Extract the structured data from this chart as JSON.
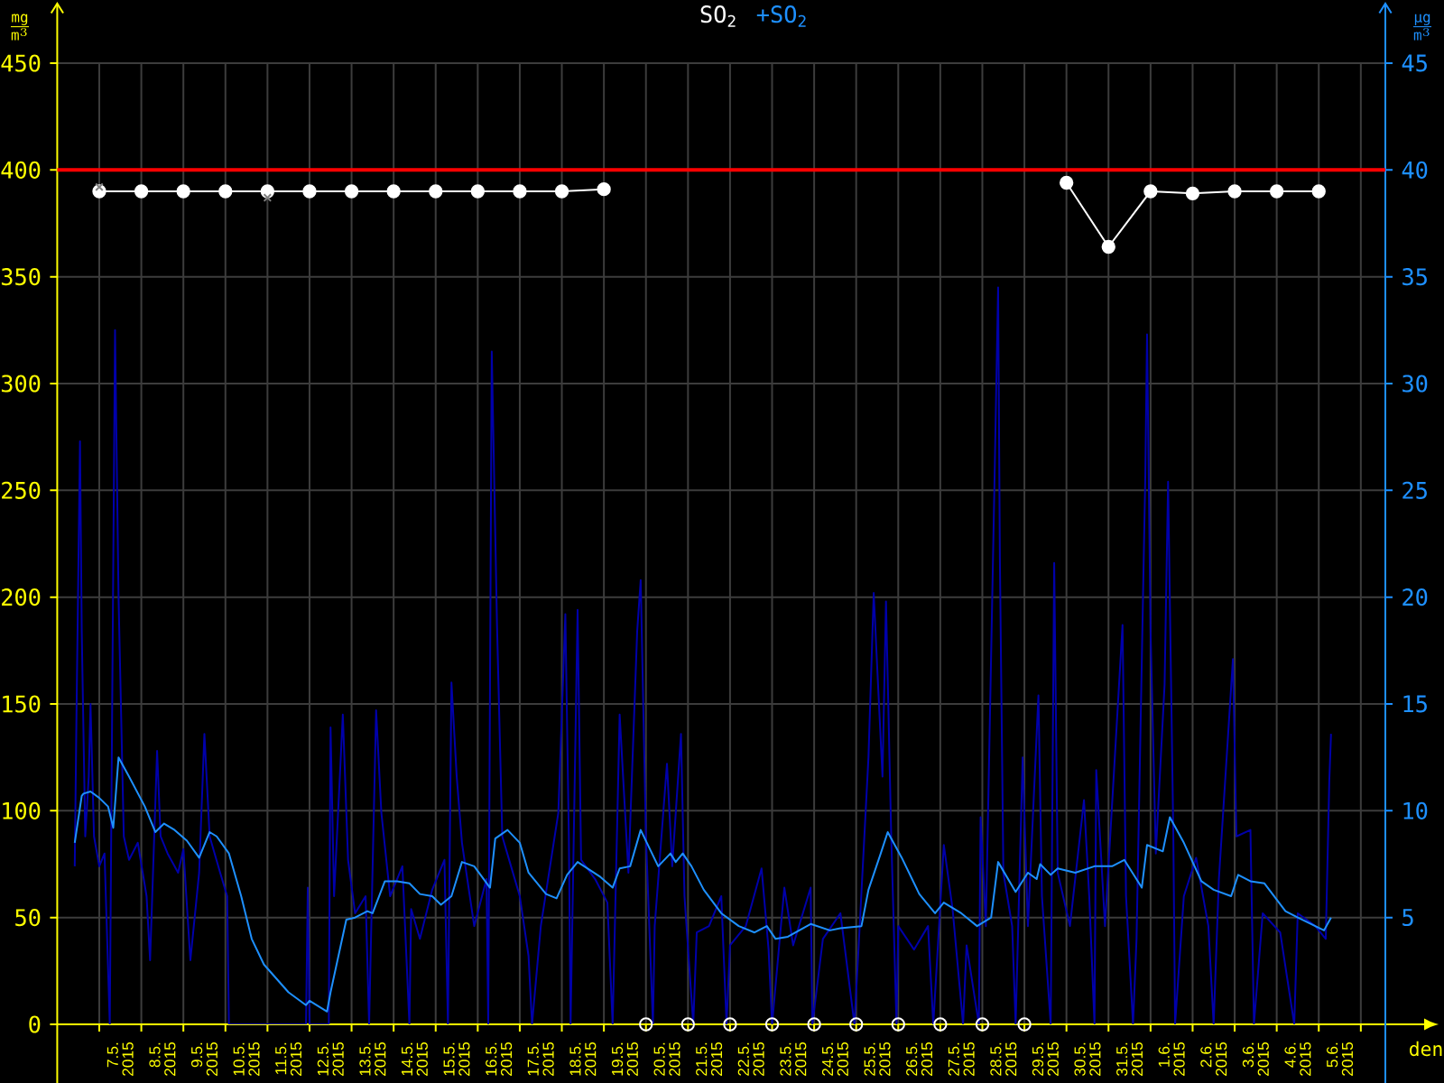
{
  "chart_data": {
    "type": "line",
    "xlabel": "den",
    "ylabel": "\\frac{\\mathrm{mg}}{\\mathrm{m}^{3}}",
    "y2label": "\\frac{\\mathrm{µg}}{\\mathrm{m}^{3}}",
    "legend": "top",
    "grid": true,
    "xlim": [
      "2015-05-06T00:00",
      "2015-06-06T14:00"
    ],
    "xticks": [
      {
        "value": "2015-05-07",
        "label": null
      },
      {
        "value": "2015-05-07T12:00",
        "label": "7.5. 2015"
      },
      {
        "value": "2015-05-08",
        "label": null
      },
      {
        "value": "2015-05-08T12:00",
        "label": "8.5. 2015"
      },
      {
        "value": "2015-05-09",
        "label": null
      },
      {
        "value": "2015-05-09T12:00",
        "label": "9.5. 2015"
      },
      {
        "value": "2015-05-10",
        "label": null
      },
      {
        "value": "2015-05-10T12:00",
        "label": "10.5. 2015"
      },
      {
        "value": "2015-05-11",
        "label": null
      },
      {
        "value": "2015-05-11T12:00",
        "label": "11.5. 2015"
      },
      {
        "value": "2015-05-12",
        "label": null
      },
      {
        "value": "2015-05-12T12:00",
        "label": "12.5. 2015"
      },
      {
        "value": "2015-05-13",
        "label": null
      },
      {
        "value": "2015-05-13T12:00",
        "label": "13.5. 2015"
      },
      {
        "value": "2015-05-14",
        "label": null
      },
      {
        "value": "2015-05-14T12:00",
        "label": "14.5. 2015"
      },
      {
        "value": "2015-05-15",
        "label": null
      },
      {
        "value": "2015-05-15T12:00",
        "label": "15.5. 2015"
      },
      {
        "value": "2015-05-16",
        "label": null
      },
      {
        "value": "2015-05-16T12:00",
        "label": "16.5. 2015"
      },
      {
        "value": "2015-05-17",
        "label": null
      },
      {
        "value": "2015-05-17T12:00",
        "label": "17.5. 2015"
      },
      {
        "value": "2015-05-18",
        "label": null
      },
      {
        "value": "2015-05-18T12:00",
        "label": "18.5. 2015"
      },
      {
        "value": "2015-05-19",
        "label": null
      },
      {
        "value": "2015-05-19T12:00",
        "label": "19.5. 2015"
      },
      {
        "value": "2015-05-20",
        "label": null
      },
      {
        "value": "2015-05-20T12:00",
        "label": "20.5. 2015"
      },
      {
        "value": "2015-05-21",
        "label": null
      },
      {
        "value": "2015-05-21T12:00",
        "label": "21.5. 2015"
      },
      {
        "value": "2015-05-22",
        "label": null
      },
      {
        "value": "2015-05-22T12:00",
        "label": "22.5. 2015"
      },
      {
        "value": "2015-05-23",
        "label": null
      },
      {
        "value": "2015-05-23T12:00",
        "label": "23.5. 2015"
      },
      {
        "value": "2015-05-24",
        "label": null
      },
      {
        "value": "2015-05-24T12:00",
        "label": "24.5. 2015"
      },
      {
        "value": "2015-05-25",
        "label": null
      },
      {
        "value": "2015-05-25T12:00",
        "label": "25.5. 2015"
      },
      {
        "value": "2015-05-26",
        "label": null
      },
      {
        "value": "2015-05-26T12:00",
        "label": "26.5. 2015"
      },
      {
        "value": "2015-05-27",
        "label": null
      },
      {
        "value": "2015-05-27T12:00",
        "label": "27.5. 2015"
      },
      {
        "value": "2015-05-28",
        "label": null
      },
      {
        "value": "2015-05-28T12:00",
        "label": "28.5. 2015"
      },
      {
        "value": "2015-05-29",
        "label": null
      },
      {
        "value": "2015-05-29T12:00",
        "label": "29.5. 2015"
      },
      {
        "value": "2015-05-30",
        "label": null
      },
      {
        "value": "2015-05-30T12:00",
        "label": "30.5. 2015"
      },
      {
        "value": "2015-05-31",
        "label": null
      },
      {
        "value": "2015-05-31T12:00",
        "label": "31.5. 2015"
      },
      {
        "value": "2015-06-01",
        "label": null
      },
      {
        "value": "2015-06-01T12:00",
        "label": "1.6. 2015"
      },
      {
        "value": "2015-06-02",
        "label": null
      },
      {
        "value": "2015-06-02T12:00",
        "label": "2.6. 2015"
      },
      {
        "value": "2015-06-03",
        "label": null
      },
      {
        "value": "2015-06-03T12:00",
        "label": "3.6. 2015"
      },
      {
        "value": "2015-06-04",
        "label": null
      },
      {
        "value": "2015-06-04T12:00",
        "label": "4.6. 2015"
      },
      {
        "value": "2015-06-05",
        "label": null
      },
      {
        "value": "2015-06-05T12:00",
        "label": "5.6. 2015"
      },
      {
        "value": "2015-06-06",
        "label": null
      }
    ],
    "ylim": [
      0,
      450
    ],
    "yticks": [
      0,
      50,
      100,
      150,
      200,
      250,
      300,
      350,
      400,
      450
    ],
    "y2lim": [
      0,
      45
    ],
    "y2ticks": [
      5,
      10,
      15,
      20,
      25,
      30,
      35,
      40,
      45
    ],
    "ref_lines": [
      {
        "axis": "y",
        "value": 400,
        "color": "#ff0000"
      }
    ],
    "series": [
      {
        "name": "SO$_{2}$",
        "color": "#ffffff",
        "marker": "circle",
        "x": [
          "2015-05-07",
          "2015-05-08",
          "2015-05-09",
          "2015-05-10",
          "2015-05-11",
          "2015-05-12",
          "2015-05-13",
          "2015-05-14",
          "2015-05-15",
          "2015-05-16",
          "2015-05-17",
          "2015-05-18",
          "2015-05-19",
          "2015-05-20",
          "2015-05-21",
          "2015-05-22",
          "2015-05-23",
          "2015-05-24",
          "2015-05-25",
          "2015-05-26",
          "2015-05-27",
          "2015-05-28",
          "2015-05-29",
          "2015-05-30",
          "2015-05-31",
          "2015-06-01",
          "2015-06-02",
          "2015-06-03",
          "2015-06-04",
          "2015-06-05"
        ],
        "values": [
          390,
          390,
          390,
          390,
          390,
          390,
          390,
          390,
          390,
          390,
          390,
          390,
          391,
          null,
          null,
          null,
          null,
          null,
          null,
          null,
          null,
          null,
          null,
          394,
          364,
          390,
          389,
          390,
          390,
          390
        ]
      },
      {
        "color": "#0000aa",
        "axis": "y2",
        "x": [
          "2015-05-06T10:00",
          "2015-05-06T11:00",
          "2015-05-06T13:00",
          "2015-05-06T14:00",
          "2015-05-06T16:00",
          "2015-05-06T18:00",
          "2015-05-06T19:00",
          "2015-05-06T21:00",
          "2015-05-07T00:00",
          "2015-05-07T03:00",
          "2015-05-07T06:00",
          "2015-05-07T09:00",
          "2015-05-07T11:00",
          "2015-05-07T14:00",
          "2015-05-07T17:00",
          "2015-05-07T22:00",
          "2015-05-08T03:00",
          "2015-05-08T05:00",
          "2015-05-08T09:00",
          "2015-05-08T11:00",
          "2015-05-08T15:00",
          "2015-05-08T21:00",
          "2015-05-09T00:00",
          "2015-05-09T04:00",
          "2015-05-09T09:00",
          "2015-05-09T12:00",
          "2015-05-09T15:00",
          "2015-05-09T21:00",
          "2015-05-10T01:00",
          "2015-05-10T02:00",
          "2015-05-11T22:00",
          "2015-05-11T23:00",
          "2015-05-12T00:00",
          "2015-05-12T11:00",
          "2015-05-12T12:00",
          "2015-05-12T14:00",
          "2015-05-12T19:00",
          "2015-05-12T22:00",
          "2015-05-13T02:00",
          "2015-05-13T08:00",
          "2015-05-13T10:00",
          "2015-05-13T14:00",
          "2015-05-13T17:00",
          "2015-05-13T22:00",
          "2015-05-14T05:00",
          "2015-05-14T09:00",
          "2015-05-14T10:00",
          "2015-05-14T15:00",
          "2015-05-14T22:00",
          "2015-05-15T05:00",
          "2015-05-15T07:00",
          "2015-05-15T09:00",
          "2015-05-15T12:00",
          "2015-05-15T15:00",
          "2015-05-15T22:00",
          "2015-05-16T05:00",
          "2015-05-16T06:00",
          "2015-05-16T08:00",
          "2015-05-16T11:00",
          "2015-05-16T14:00",
          "2015-05-16T19:00",
          "2015-05-17T00:00",
          "2015-05-17T05:00",
          "2015-05-17T07:00",
          "2015-05-17T12:00",
          "2015-05-17T22:00",
          "2015-05-18T02:00",
          "2015-05-18T04:00",
          "2015-05-18T05:00",
          "2015-05-18T09:00",
          "2015-05-18T11:00",
          "2015-05-18T19:00",
          "2015-05-19T02:00",
          "2015-05-19T05:00",
          "2015-05-19T09:00",
          "2015-05-19T14:00",
          "2015-05-19T19:00",
          "2015-05-19T21:00",
          "2015-05-20T00:00",
          "2015-05-20T04:00",
          "2015-05-20T05:00",
          "2015-05-20T12:00",
          "2015-05-20T15:00",
          "2015-05-20T20:00",
          "2015-05-20T22:00",
          "2015-05-21T03:00",
          "2015-05-21T05:00",
          "2015-05-21T12:00",
          "2015-05-21T19:00",
          "2015-05-21T22:00",
          "2015-05-22T00:00",
          "2015-05-22T09:00",
          "2015-05-22T18:00",
          "2015-05-22T22:00",
          "2015-05-23T00:00",
          "2015-05-23T07:00",
          "2015-05-23T12:00",
          "2015-05-23T22:00",
          "2015-05-23T23:00",
          "2015-05-24T05:00",
          "2015-05-24T15:00",
          "2015-05-24T23:00",
          "2015-05-25T02:00",
          "2015-05-25T07:00",
          "2015-05-25T10:00",
          "2015-05-25T12:00",
          "2015-05-25T15:00",
          "2015-05-25T17:00",
          "2015-05-25T20:00",
          "2015-05-25T23:00",
          "2015-05-26T00:00",
          "2015-05-26T09:00",
          "2015-05-26T17:00",
          "2015-05-26T20:00",
          "2015-05-27T02:00",
          "2015-05-27T07:00",
          "2015-05-27T13:00",
          "2015-05-27T15:00",
          "2015-05-27T22:00",
          "2015-05-27T23:00",
          "2015-05-28T02:00",
          "2015-05-28T07:00",
          "2015-05-28T09:00",
          "2015-05-28T10:00",
          "2015-05-28T12:00",
          "2015-05-28T17:00",
          "2015-05-28T19:00",
          "2015-05-28T23:00",
          "2015-05-29T02:00",
          "2015-05-29T08:00",
          "2015-05-29T10:00",
          "2015-05-29T15:00",
          "2015-05-29T17:00",
          "2015-05-29T19:00",
          "2015-05-30T02:00",
          "2015-05-30T10:00",
          "2015-05-30T13:00",
          "2015-05-30T16:00",
          "2015-05-30T17:00",
          "2015-05-30T22:00",
          "2015-05-31T08:00",
          "2015-05-31T10:00",
          "2015-05-31T14:00",
          "2015-05-31T16:00",
          "2015-05-31T21:00",
          "2015-05-31T22:00",
          "2015-06-01T00:00",
          "2015-06-01T03:00",
          "2015-06-01T08:00",
          "2015-06-01T10:00",
          "2015-06-01T13:00",
          "2015-06-01T14:00",
          "2015-06-01T19:00",
          "2015-06-02T02:00",
          "2015-06-02T09:00",
          "2015-06-02T12:00",
          "2015-06-02T15:00",
          "2015-06-02T23:00",
          "2015-06-03T01:00",
          "2015-06-03T09:00",
          "2015-06-03T11:00",
          "2015-06-03T16:00",
          "2015-06-04T02:00",
          "2015-06-04T10:00",
          "2015-06-04T12:00",
          "2015-06-04T22:00",
          "2015-06-05T04:00",
          "2015-06-05T06:00",
          "2015-06-05T07:00"
        ],
        "values": [
          7.4,
          14.5,
          27.3,
          18.4,
          8.8,
          11.6,
          15.0,
          8.8,
          7.4,
          8.0,
          0,
          32.5,
          20.0,
          8.8,
          7.7,
          8.5,
          6.0,
          3.0,
          12.8,
          8.8,
          8.0,
          7.1,
          8.2,
          3.0,
          7.1,
          13.6,
          8.8,
          7.1,
          6.0,
          0,
          0,
          6.4,
          0,
          0,
          13.9,
          6.0,
          14.5,
          7.7,
          5.2,
          6.0,
          0,
          14.7,
          9.9,
          6.0,
          7.4,
          0,
          5.4,
          4.0,
          6.3,
          7.7,
          0,
          16.0,
          11.6,
          8.5,
          4.6,
          6.8,
          0,
          31.5,
          18.7,
          8.8,
          7.4,
          6.0,
          3.2,
          0,
          4.6,
          9.9,
          19.2,
          8.8,
          0,
          19.4,
          7.7,
          6.8,
          5.7,
          0,
          14.5,
          7.1,
          18.4,
          20.8,
          8.8,
          0,
          4.6,
          12.2,
          7.4,
          13.6,
          6.0,
          0,
          4.3,
          4.6,
          6.0,
          0,
          3.7,
          4.6,
          7.3,
          3.5,
          0,
          6.4,
          3.7,
          6.4,
          0,
          4.0,
          5.2,
          0,
          4.6,
          12.5,
          20.2,
          16.7,
          11.6,
          19.8,
          8.8,
          0,
          4.6,
          3.5,
          4.6,
          0,
          8.4,
          5.4,
          0,
          3.7,
          0,
          9.7,
          4.6,
          25.7,
          34.5,
          21.8,
          7.1,
          4.6,
          0,
          12.5,
          4.6,
          15.4,
          6.0,
          0,
          21.6,
          7.1,
          4.6,
          10.5,
          6.0,
          0,
          11.9,
          4.6,
          18.7,
          6.0,
          0,
          4.0,
          25.7,
          32.3,
          18.4,
          8.0,
          15.9,
          25.4,
          8.8,
          0,
          6.0,
          7.8,
          4.6,
          0,
          6.8,
          17.1,
          8.8,
          9.1,
          0,
          5.2,
          4.3,
          0,
          5.2,
          4.6,
          4.0,
          11.4,
          13.6
        ]
      },
      {
        "name": "+SO$_{2}$",
        "color": "#1e90ff",
        "axis": "y2",
        "x": [
          "2015-05-06T10:00",
          "2015-05-06T14:00",
          "2015-05-06T15:00",
          "2015-05-06T19:00",
          "2015-05-07T00:00",
          "2015-05-07T05:00",
          "2015-05-07T08:00",
          "2015-05-07T11:00",
          "2015-05-07T17:00",
          "2015-05-08T02:00",
          "2015-05-08T08:00",
          "2015-05-08T13:00",
          "2015-05-08T19:00",
          "2015-05-09T02:00",
          "2015-05-09T09:00",
          "2015-05-09T15:00",
          "2015-05-09T19:00",
          "2015-05-10T02:00",
          "2015-05-10T09:00",
          "2015-05-10T15:00",
          "2015-05-10T22:00",
          "2015-05-11T12:00",
          "2015-05-11T22:00",
          "2015-05-12T00:00",
          "2015-05-12T10:00",
          "2015-05-12T12:00",
          "2015-05-12T21:00",
          "2015-05-13T02:00",
          "2015-05-13T09:00",
          "2015-05-13T12:00",
          "2015-05-13T19:00",
          "2015-05-14T02:00",
          "2015-05-14T09:00",
          "2015-05-14T15:00",
          "2015-05-14T22:00",
          "2015-05-15T03:00",
          "2015-05-15T09:00",
          "2015-05-15T15:00",
          "2015-05-15T22:00",
          "2015-05-16T07:00",
          "2015-05-16T10:00",
          "2015-05-16T17:00",
          "2015-05-17T00:00",
          "2015-05-17T05:00",
          "2015-05-17T15:00",
          "2015-05-17T21:00",
          "2015-05-18T03:00",
          "2015-05-18T09:00",
          "2015-05-18T22:00",
          "2015-05-19T05:00",
          "2015-05-19T09:00",
          "2015-05-19T15:00",
          "2015-05-19T21:00",
          "2015-05-20T07:00",
          "2015-05-20T14:00",
          "2015-05-20T17:00",
          "2015-05-20T21:00",
          "2015-05-21T02:00",
          "2015-05-21T09:00",
          "2015-05-21T19:00",
          "2015-05-22T05:00",
          "2015-05-22T14:00",
          "2015-05-22T21:00",
          "2015-05-23T02:00",
          "2015-05-23T09:00",
          "2015-05-23T22:00",
          "2015-05-24T09:00",
          "2015-05-24T15:00",
          "2015-05-25T03:00",
          "2015-05-25T07:00",
          "2015-05-25T14:00",
          "2015-05-25T18:00",
          "2015-05-26T02:00",
          "2015-05-26T12:00",
          "2015-05-26T21:00",
          "2015-05-27T02:00",
          "2015-05-27T12:00",
          "2015-05-27T21:00",
          "2015-05-28T05:00",
          "2015-05-28T09:00",
          "2015-05-28T19:00",
          "2015-05-29T02:00",
          "2015-05-29T07:00",
          "2015-05-29T09:00",
          "2015-05-29T15:00",
          "2015-05-29T19:00",
          "2015-05-30T05:00",
          "2015-05-30T16:00",
          "2015-05-31T02:00",
          "2015-05-31T09:00",
          "2015-05-31T19:00",
          "2015-05-31T22:00",
          "2015-06-01T07:00",
          "2015-06-01T11:00",
          "2015-06-01T19:00",
          "2015-06-02T05:00",
          "2015-06-02T12:00",
          "2015-06-02T22:00",
          "2015-06-03T02:00",
          "2015-06-03T09:00",
          "2015-06-03T17:00",
          "2015-06-04T05:00",
          "2015-06-04T12:00",
          "2015-06-05T03:00",
          "2015-06-05T07:00"
        ],
        "values": [
          8.5,
          10.7,
          10.8,
          10.9,
          10.6,
          10.2,
          9.2,
          12.5,
          11.6,
          10.2,
          9.0,
          9.4,
          9.1,
          8.6,
          7.8,
          9.0,
          8.8,
          8.0,
          6.0,
          4.0,
          2.8,
          1.5,
          0.9,
          1.1,
          0.6,
          1.5,
          4.9,
          5.0,
          5.3,
          5.2,
          6.7,
          6.7,
          6.6,
          6.1,
          6.0,
          5.6,
          6.0,
          7.6,
          7.4,
          6.4,
          8.7,
          9.1,
          8.5,
          7.1,
          6.1,
          5.9,
          7.0,
          7.6,
          6.9,
          6.4,
          7.3,
          7.4,
          9.1,
          7.4,
          8.0,
          7.6,
          8.0,
          7.4,
          6.3,
          5.2,
          4.6,
          4.3,
          4.6,
          4.0,
          4.1,
          4.7,
          4.4,
          4.5,
          4.6,
          6.3,
          8.0,
          9.0,
          7.8,
          6.1,
          5.2,
          5.7,
          5.2,
          4.6,
          5.0,
          7.6,
          6.2,
          7.1,
          6.8,
          7.5,
          7.0,
          7.3,
          7.1,
          7.4,
          7.4,
          7.7,
          6.4,
          8.4,
          8.1,
          9.7,
          8.5,
          6.7,
          6.3,
          6.0,
          7.0,
          6.7,
          6.6,
          5.3,
          5.0,
          4.4,
          5.0
        ]
      },
      {
        "type": "scatter",
        "color": "#808080",
        "marker": "cross",
        "x": [
          "2015-05-07",
          "2015-05-11"
        ],
        "values": [
          392,
          387
        ]
      },
      {
        "type": "scatter",
        "color": "#ffffff",
        "marker": "circle",
        "x": [
          "2015-05-20",
          "2015-05-21",
          "2015-05-22",
          "2015-05-23",
          "2015-05-24",
          "2015-05-25",
          "2015-05-26",
          "2015-05-27",
          "2015-05-28",
          "2015-05-29"
        ],
        "values": [
          0,
          0,
          0,
          0,
          0,
          0,
          0,
          0,
          0,
          0
        ]
      }
    ]
  }
}
